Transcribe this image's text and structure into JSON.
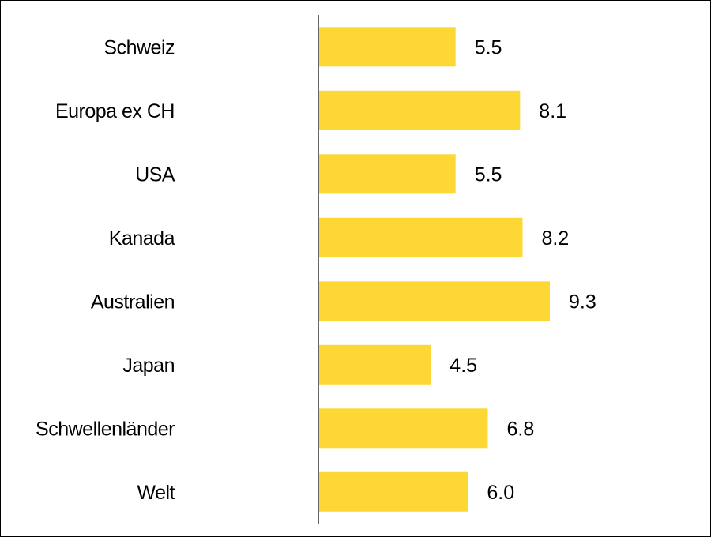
{
  "chart_data": {
    "type": "bar",
    "orientation": "horizontal",
    "categories": [
      "Schweiz",
      "Europa ex CH",
      "USA",
      "Kanada",
      "Australien",
      "Japan",
      "Schwellenländer",
      "Welt"
    ],
    "values": [
      5.5,
      8.1,
      5.5,
      8.2,
      9.3,
      4.5,
      6.8,
      6.0
    ],
    "value_labels": [
      "5.5",
      "8.1",
      "5.5",
      "8.2",
      "9.3",
      "4.5",
      "6.8",
      "6.0"
    ],
    "title": "",
    "xlabel": "",
    "ylabel": "",
    "xlim": [
      0,
      10
    ],
    "grid": false,
    "legend": "none",
    "bar_color": "#FDD835",
    "axis_color": "#333333"
  }
}
